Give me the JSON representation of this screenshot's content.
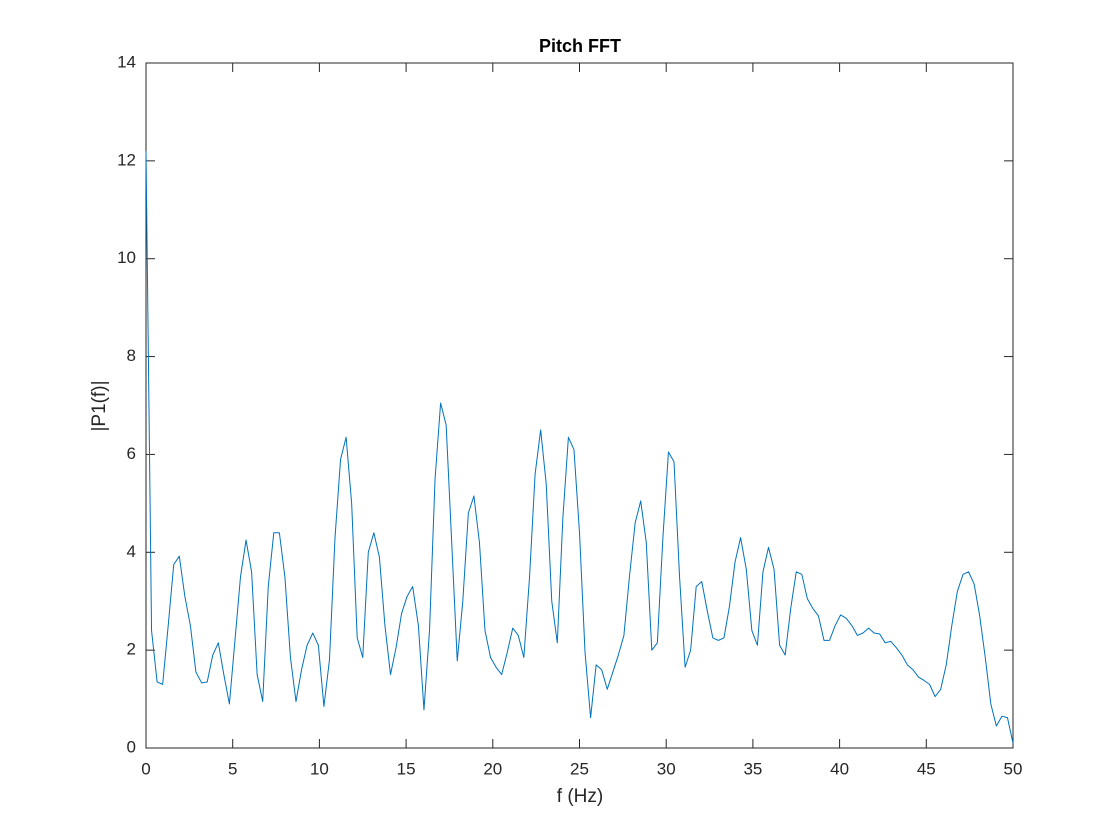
{
  "chart_data": {
    "type": "line",
    "title": "Pitch FFT",
    "x_label": "f (Hz)",
    "y_label": "|P1(f)|",
    "x": [
      0,
      0.32,
      0.64,
      0.96,
      1.28,
      1.6,
      1.92,
      2.24,
      2.56,
      2.88,
      3.21,
      3.53,
      3.85,
      4.17,
      4.49,
      4.81,
      5.13,
      5.45,
      5.77,
      6.09,
      6.41,
      6.73,
      7.05,
      7.37,
      7.69,
      8.01,
      8.33,
      8.65,
      8.97,
      9.29,
      9.62,
      9.94,
      10.26,
      10.58,
      10.9,
      11.22,
      11.54,
      11.86,
      12.18,
      12.5,
      12.82,
      13.14,
      13.46,
      13.78,
      14.1,
      14.42,
      14.74,
      15.06,
      15.38,
      15.71,
      16.03,
      16.35,
      16.67,
      16.99,
      17.31,
      17.63,
      17.95,
      18.27,
      18.59,
      18.91,
      19.23,
      19.55,
      19.87,
      20.19,
      20.51,
      20.83,
      21.15,
      21.47,
      21.79,
      22.12,
      22.44,
      22.76,
      23.08,
      23.4,
      23.72,
      24.04,
      24.36,
      24.68,
      25.0,
      25.32,
      25.64,
      25.96,
      26.28,
      26.6,
      26.92,
      27.24,
      27.56,
      27.88,
      28.21,
      28.53,
      28.85,
      29.17,
      29.49,
      29.81,
      30.13,
      30.45,
      30.77,
      31.09,
      31.41,
      31.73,
      32.05,
      32.37,
      32.69,
      33.01,
      33.33,
      33.65,
      33.97,
      34.29,
      34.62,
      34.94,
      35.26,
      35.58,
      35.9,
      36.22,
      36.54,
      36.86,
      37.18,
      37.5,
      37.82,
      38.14,
      38.46,
      38.78,
      39.1,
      39.42,
      39.74,
      40.06,
      40.38,
      40.71,
      41.03,
      41.35,
      41.67,
      41.99,
      42.31,
      42.63,
      42.95,
      43.27,
      43.59,
      43.91,
      44.23,
      44.55,
      44.87,
      45.19,
      45.51,
      45.83,
      46.15,
      46.47,
      46.79,
      47.12,
      47.44,
      47.76,
      48.08,
      48.4,
      48.72,
      49.04,
      49.36,
      49.68,
      50.0
    ],
    "series": [
      {
        "color": "#0072bd",
        "values": [
          12.2,
          2.4,
          1.35,
          1.3,
          2.5,
          3.75,
          3.92,
          3.1,
          2.5,
          1.55,
          1.33,
          1.35,
          1.9,
          2.15,
          1.5,
          0.9,
          2.2,
          3.5,
          4.25,
          3.6,
          1.5,
          0.95,
          3.3,
          4.4,
          4.4,
          3.5,
          1.85,
          0.95,
          1.6,
          2.1,
          2.35,
          2.1,
          0.85,
          1.8,
          4.3,
          5.9,
          6.35,
          5.0,
          2.25,
          1.85,
          4.0,
          4.4,
          3.9,
          2.5,
          1.5,
          2.05,
          2.75,
          3.1,
          3.3,
          2.5,
          0.78,
          2.4,
          5.5,
          7.05,
          6.6,
          4.2,
          1.78,
          3.0,
          4.8,
          5.15,
          4.2,
          2.4,
          1.85,
          1.65,
          1.5,
          1.95,
          2.45,
          2.3,
          1.85,
          3.5,
          5.6,
          6.5,
          5.4,
          3.0,
          2.15,
          4.7,
          6.35,
          6.1,
          4.4,
          1.95,
          0.62,
          1.7,
          1.6,
          1.2,
          1.55,
          1.9,
          2.3,
          3.5,
          4.6,
          5.05,
          4.2,
          2.0,
          2.15,
          4.3,
          6.05,
          5.85,
          3.5,
          1.65,
          2.0,
          3.3,
          3.4,
          2.8,
          2.25,
          2.2,
          2.25,
          2.9,
          3.8,
          4.3,
          3.65,
          2.4,
          2.1,
          3.6,
          4.1,
          3.65,
          2.1,
          1.9,
          2.85,
          3.6,
          3.55,
          3.05,
          2.85,
          2.7,
          2.2,
          2.2,
          2.5,
          2.72,
          2.65,
          2.5,
          2.3,
          2.35,
          2.45,
          2.35,
          2.33,
          2.15,
          2.18,
          2.05,
          1.9,
          1.7,
          1.6,
          1.45,
          1.38,
          1.3,
          1.05,
          1.2,
          1.7,
          2.5,
          3.2,
          3.55,
          3.6,
          3.35,
          2.7,
          1.85,
          0.9,
          0.45,
          0.65,
          0.62,
          0.1
        ]
      }
    ],
    "xlim": [
      0,
      50
    ],
    "xticks": [
      0,
      5,
      10,
      15,
      20,
      25,
      30,
      35,
      40,
      45,
      50
    ],
    "ylim": [
      0,
      14
    ],
    "yticks": [
      0,
      2,
      4,
      6,
      8,
      10,
      12,
      14
    ]
  }
}
